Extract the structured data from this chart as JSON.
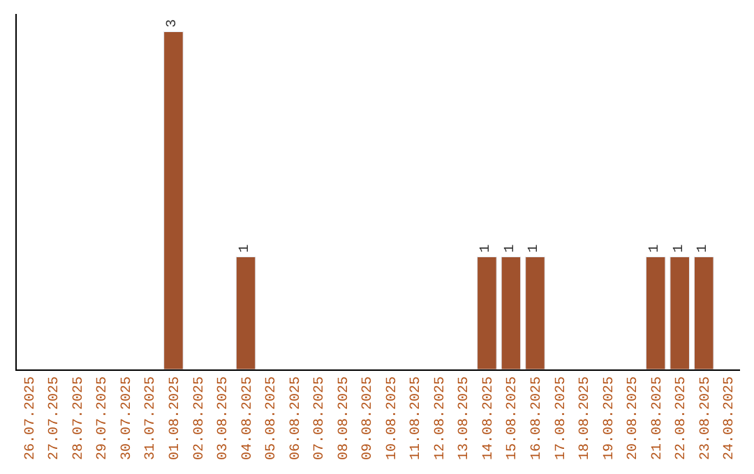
{
  "chart_data": {
    "type": "bar",
    "categories": [
      "26.07.2025",
      "27.07.2025",
      "28.07.2025",
      "29.07.2025",
      "30.07.2025",
      "31.07.2025",
      "01.08.2025",
      "02.08.2025",
      "03.08.2025",
      "04.08.2025",
      "05.08.2025",
      "06.08.2025",
      "07.08.2025",
      "08.08.2025",
      "09.08.2025",
      "10.08.2025",
      "11.08.2025",
      "12.08.2025",
      "13.08.2025",
      "14.08.2025",
      "15.08.2025",
      "16.08.2025",
      "17.08.2025",
      "18.08.2025",
      "19.08.2025",
      "20.08.2025",
      "21.08.2025",
      "22.08.2025",
      "23.08.2025",
      "24.08.2025"
    ],
    "values": [
      null,
      null,
      null,
      null,
      null,
      null,
      3,
      null,
      null,
      1,
      null,
      null,
      null,
      null,
      null,
      null,
      null,
      null,
      null,
      1,
      1,
      1,
      null,
      null,
      null,
      null,
      1,
      1,
      1,
      null
    ],
    "value_labels": [
      null,
      null,
      null,
      null,
      null,
      null,
      "3",
      null,
      null,
      "1",
      null,
      null,
      null,
      null,
      null,
      null,
      null,
      null,
      null,
      "1",
      "1",
      "1",
      null,
      null,
      null,
      null,
      "1",
      "1",
      "1",
      null
    ],
    "color": "#a0522d",
    "tick_labels": "x",
    "legend": false
  }
}
